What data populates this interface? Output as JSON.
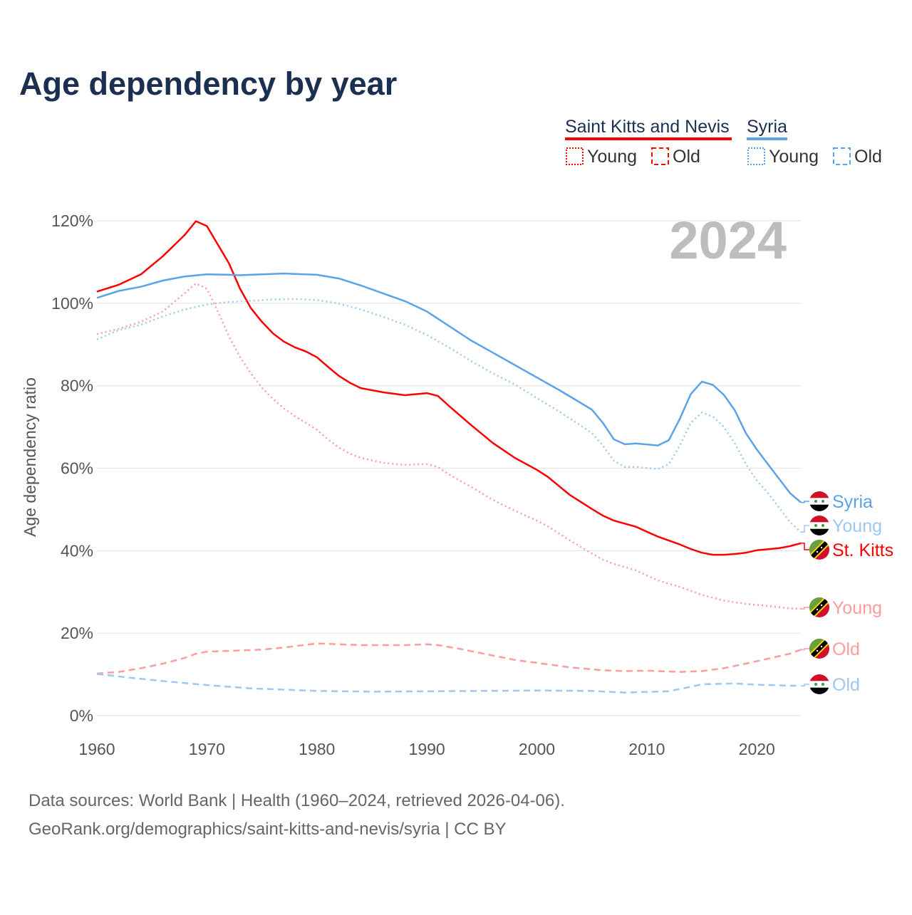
{
  "chart_data": {
    "type": "line",
    "title": "Age dependency by year",
    "ylabel": "Age dependency ratio",
    "xlabel": "",
    "xlim": [
      1960,
      2024
    ],
    "ylim": [
      0,
      120
    ],
    "x_ticks": [
      "1960",
      "1970",
      "1980",
      "1990",
      "2000",
      "2010",
      "2020"
    ],
    "y_ticks": [
      "0%",
      "20%",
      "40%",
      "60%",
      "80%",
      "100%",
      "120%"
    ],
    "grid": true,
    "year_watermark": "2024",
    "legend": {
      "placement": "top-right",
      "groups": [
        {
          "name": "Saint Kitts and Nevis",
          "color": "#ff0000",
          "young": "Young",
          "old": "Old"
        },
        {
          "name": "Syria",
          "color": "#5ba3e8",
          "young": "Young",
          "old": "Old"
        }
      ]
    },
    "series": [
      {
        "name": "Saint Kitts and Nevis",
        "label": "St. Kitts",
        "flag": "skn",
        "style": "solid",
        "color": "#ff0000",
        "points": [
          [
            1960,
            102.8
          ],
          [
            1962,
            104.5
          ],
          [
            1964,
            107
          ],
          [
            1966,
            111.4
          ],
          [
            1968,
            116.6
          ],
          [
            1969,
            119.9
          ],
          [
            1970,
            118.7
          ],
          [
            1972,
            109.7
          ],
          [
            1973,
            103.6
          ],
          [
            1974,
            98.8
          ],
          [
            1975,
            95.5
          ],
          [
            1976,
            92.7
          ],
          [
            1977,
            90.7
          ],
          [
            1978,
            89.3
          ],
          [
            1979,
            88.3
          ],
          [
            1980,
            86.9
          ],
          [
            1981,
            84.6
          ],
          [
            1982,
            82.4
          ],
          [
            1983,
            80.7
          ],
          [
            1984,
            79.4
          ],
          [
            1986,
            78.4
          ],
          [
            1988,
            77.7
          ],
          [
            1990,
            78.2
          ],
          [
            1991,
            77.5
          ],
          [
            1992,
            75.1
          ],
          [
            1994,
            70.5
          ],
          [
            1996,
            66.1
          ],
          [
            1998,
            62.5
          ],
          [
            2000,
            59.6
          ],
          [
            2001,
            57.9
          ],
          [
            2003,
            53.5
          ],
          [
            2005,
            50.1
          ],
          [
            2006,
            48.5
          ],
          [
            2007,
            47.3
          ],
          [
            2009,
            45.8
          ],
          [
            2011,
            43.4
          ],
          [
            2013,
            41.5
          ],
          [
            2014,
            40.4
          ],
          [
            2015,
            39.5
          ],
          [
            2016,
            39.0
          ],
          [
            2017,
            39.0
          ],
          [
            2018,
            39.2
          ],
          [
            2019,
            39.5
          ],
          [
            2020,
            40.1
          ],
          [
            2022,
            40.6
          ],
          [
            2023,
            41.1
          ],
          [
            2024,
            41.8
          ]
        ]
      },
      {
        "name": "Saint Kitts and Nevis Young",
        "label": "Young",
        "flag": "skn",
        "style": "dotted",
        "color": "#ff9c9c",
        "points": [
          [
            1960,
            92.5
          ],
          [
            1962,
            93.8
          ],
          [
            1964,
            95.5
          ],
          [
            1966,
            98
          ],
          [
            1968,
            102.5
          ],
          [
            1969,
            104.8
          ],
          [
            1970,
            103.5
          ],
          [
            1971,
            98
          ],
          [
            1972,
            92
          ],
          [
            1973,
            87
          ],
          [
            1974,
            83
          ],
          [
            1975,
            79.5
          ],
          [
            1976,
            76.8
          ],
          [
            1977,
            74.5
          ],
          [
            1978,
            72.6
          ],
          [
            1979,
            71
          ],
          [
            1980,
            69.3
          ],
          [
            1981,
            67
          ],
          [
            1982,
            65
          ],
          [
            1983,
            63.5
          ],
          [
            1984,
            62.5
          ],
          [
            1986,
            61.3
          ],
          [
            1988,
            60.8
          ],
          [
            1990,
            61
          ],
          [
            1991,
            60.3
          ],
          [
            1992,
            58.5
          ],
          [
            1994,
            55.5
          ],
          [
            1996,
            52.3
          ],
          [
            1998,
            49.7
          ],
          [
            2000,
            47.3
          ],
          [
            2001,
            45.9
          ],
          [
            2003,
            42.5
          ],
          [
            2005,
            39.3
          ],
          [
            2006,
            37.8
          ],
          [
            2007,
            36.8
          ],
          [
            2009,
            35.2
          ],
          [
            2011,
            32.8
          ],
          [
            2013,
            31.2
          ],
          [
            2015,
            29.3
          ],
          [
            2017,
            27.9
          ],
          [
            2019,
            27.1
          ],
          [
            2021,
            26.6
          ],
          [
            2023,
            26.0
          ],
          [
            2024,
            25.9
          ]
        ]
      },
      {
        "name": "Saint Kitts and Nevis Old",
        "label": "Old",
        "flag": "skn",
        "style": "dashed",
        "color": "#ff9c9c",
        "points": [
          [
            1960,
            10.2
          ],
          [
            1962,
            10.6
          ],
          [
            1964,
            11.5
          ],
          [
            1966,
            12.6
          ],
          [
            1968,
            14
          ],
          [
            1969,
            15.0
          ],
          [
            1970,
            15.5
          ],
          [
            1972,
            15.7
          ],
          [
            1975,
            16.0
          ],
          [
            1977,
            16.5
          ],
          [
            1980,
            17.5
          ],
          [
            1982,
            17.3
          ],
          [
            1984,
            17.1
          ],
          [
            1988,
            17.1
          ],
          [
            1990,
            17.3
          ],
          [
            1991,
            17.1
          ],
          [
            1993,
            16.2
          ],
          [
            1995,
            15.1
          ],
          [
            1998,
            13.5
          ],
          [
            2000,
            12.8
          ],
          [
            2003,
            11.7
          ],
          [
            2006,
            11.0
          ],
          [
            2008,
            10.8
          ],
          [
            2010,
            10.9
          ],
          [
            2013,
            10.6
          ],
          [
            2015,
            10.8
          ],
          [
            2017,
            11.5
          ],
          [
            2019,
            12.6
          ],
          [
            2021,
            13.8
          ],
          [
            2023,
            15.0
          ],
          [
            2024,
            16.0
          ]
        ]
      },
      {
        "name": "Syria",
        "label": "Syria",
        "flag": "syria",
        "style": "solid",
        "color": "#5ba3e8",
        "points": [
          [
            1960,
            101.3
          ],
          [
            1962,
            103
          ],
          [
            1964,
            104
          ],
          [
            1966,
            105.5
          ],
          [
            1968,
            106.5
          ],
          [
            1970,
            107
          ],
          [
            1972,
            106.9
          ],
          [
            1973,
            106.8
          ],
          [
            1975,
            107
          ],
          [
            1977,
            107.2
          ],
          [
            1980,
            106.9
          ],
          [
            1982,
            106
          ],
          [
            1984,
            104.3
          ],
          [
            1986,
            102.4
          ],
          [
            1988,
            100.5
          ],
          [
            1990,
            98
          ],
          [
            1992,
            94.5
          ],
          [
            1994,
            91
          ],
          [
            1996,
            88
          ],
          [
            1998,
            85
          ],
          [
            2000,
            82
          ],
          [
            2002,
            79
          ],
          [
            2004,
            75.8
          ],
          [
            2005,
            74.2
          ],
          [
            2006,
            71
          ],
          [
            2007,
            67
          ],
          [
            2008,
            65.8
          ],
          [
            2009,
            66
          ],
          [
            2011,
            65.5
          ],
          [
            2012,
            66.8
          ],
          [
            2013,
            72
          ],
          [
            2014,
            78
          ],
          [
            2015,
            81
          ],
          [
            2016,
            80.2
          ],
          [
            2017,
            77.8
          ],
          [
            2018,
            74
          ],
          [
            2019,
            68.5
          ],
          [
            2020,
            64.5
          ],
          [
            2021,
            61
          ],
          [
            2022,
            57.5
          ],
          [
            2023,
            54
          ],
          [
            2024,
            51.7
          ]
        ]
      },
      {
        "name": "Syria Young",
        "label": "Young",
        "flag": "syria",
        "style": "dotted",
        "color": "#9ec8f0",
        "points": [
          [
            1960,
            91.2
          ],
          [
            1962,
            93.5
          ],
          [
            1964,
            94.8
          ],
          [
            1966,
            96.8
          ],
          [
            1968,
            98.5
          ],
          [
            1970,
            99.7
          ],
          [
            1972,
            100.3
          ],
          [
            1974,
            100.6
          ],
          [
            1976,
            100.9
          ],
          [
            1978,
            101.0
          ],
          [
            1980,
            100.8
          ],
          [
            1982,
            99.9
          ],
          [
            1984,
            98.5
          ],
          [
            1986,
            96.7
          ],
          [
            1988,
            94.8
          ],
          [
            1990,
            92.3
          ],
          [
            1992,
            89.3
          ],
          [
            1994,
            86
          ],
          [
            1996,
            83
          ],
          [
            1998,
            80.3
          ],
          [
            2000,
            77
          ],
          [
            2002,
            73.8
          ],
          [
            2004,
            70.3
          ],
          [
            2005,
            68.5
          ],
          [
            2006,
            65.5
          ],
          [
            2007,
            61.8
          ],
          [
            2008,
            60.3
          ],
          [
            2009,
            60.3
          ],
          [
            2011,
            59.8
          ],
          [
            2012,
            61
          ],
          [
            2013,
            65.5
          ],
          [
            2014,
            71
          ],
          [
            2015,
            73.5
          ],
          [
            2016,
            72.5
          ],
          [
            2017,
            70
          ],
          [
            2018,
            66
          ],
          [
            2019,
            61
          ],
          [
            2020,
            57
          ],
          [
            2021,
            54
          ],
          [
            2022,
            50.5
          ],
          [
            2023,
            47
          ],
          [
            2024,
            44.5
          ]
        ]
      },
      {
        "name": "Syria Old",
        "label": "Old",
        "flag": "syria",
        "style": "dashed",
        "color": "#9ec8f0",
        "points": [
          [
            1960,
            10.1
          ],
          [
            1963,
            9.2
          ],
          [
            1966,
            8.4
          ],
          [
            1970,
            7.4
          ],
          [
            1974,
            6.6
          ],
          [
            1980,
            6.0
          ],
          [
            1985,
            5.8
          ],
          [
            1990,
            5.9
          ],
          [
            1995,
            6.0
          ],
          [
            2000,
            6.1
          ],
          [
            2005,
            6.0
          ],
          [
            2008,
            5.6
          ],
          [
            2012,
            5.9
          ],
          [
            2014,
            7.0
          ],
          [
            2015,
            7.6
          ],
          [
            2018,
            7.8
          ],
          [
            2020,
            7.5
          ],
          [
            2024,
            7.2
          ]
        ]
      }
    ]
  },
  "footer": {
    "line1": "Data sources: World Bank | Health (1960–2024, retrieved 2026-04-06).",
    "line2": "GeoRank.org/demographics/saint-kitts-and-nevis/syria | CC BY"
  }
}
